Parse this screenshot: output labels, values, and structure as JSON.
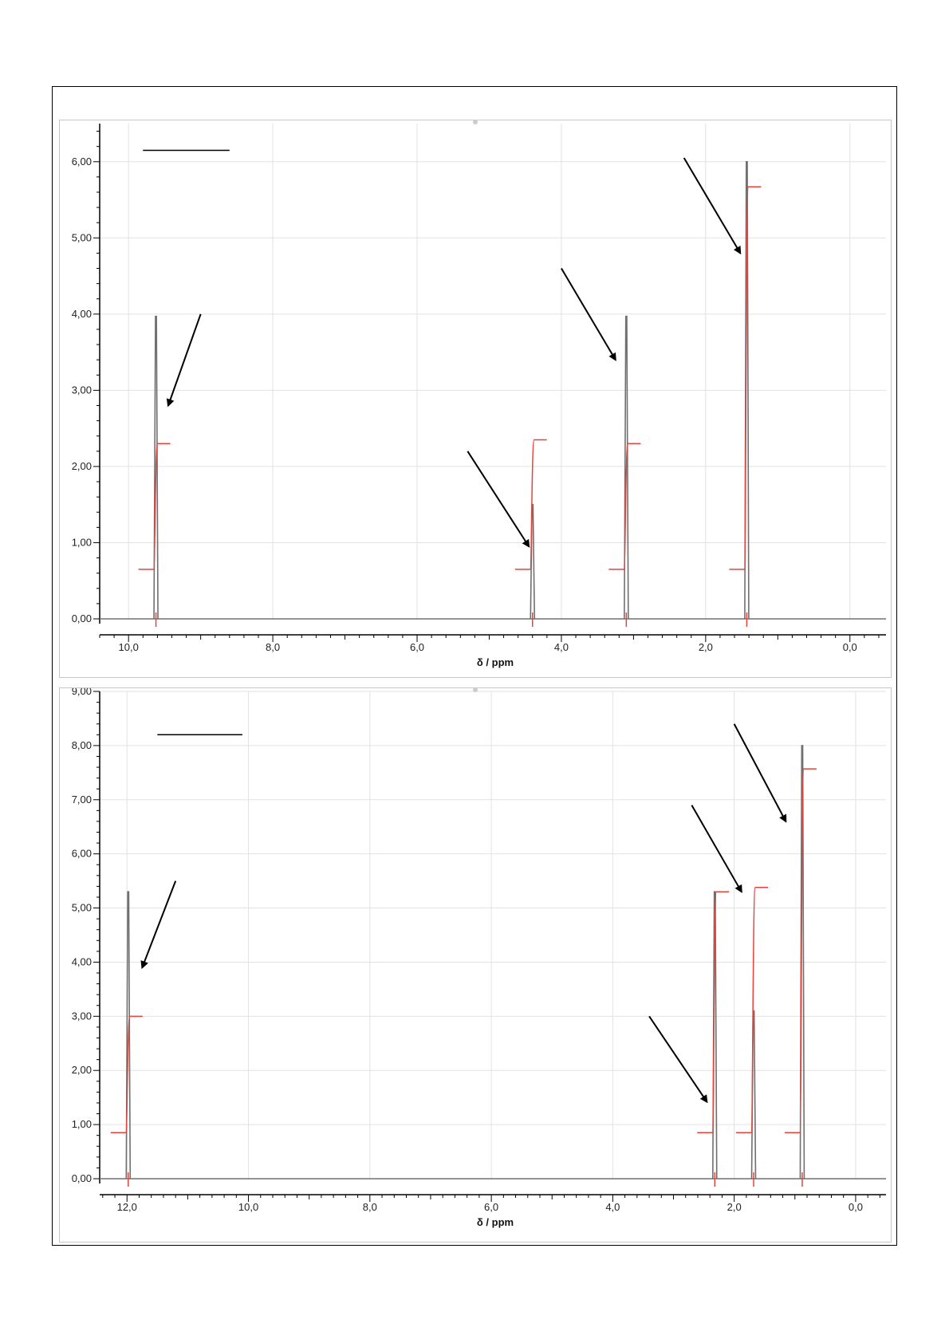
{
  "colors": {
    "spectrum": "#707070",
    "integral": "#e8423a",
    "grid": "#e2e2e2",
    "axis": "#000000",
    "arrow": "#000000"
  },
  "chart_data": [
    {
      "type": "line",
      "xlabel": "δ / ppm",
      "ylabel": "",
      "xlim": [
        10.4,
        -0.5
      ],
      "ylim": [
        0,
        6.5
      ],
      "x_reversed": true,
      "grid": true,
      "x_ticks": [
        "10,0",
        "8,0",
        "6,0",
        "4,0",
        "2,0",
        "0,0"
      ],
      "x_tick_values": [
        10,
        8,
        6,
        4,
        2,
        0
      ],
      "y_ticks": [
        "0,00",
        "1,00",
        "2,00",
        "3,00",
        "4,00",
        "5,00",
        "6,00"
      ],
      "y_tick_values": [
        0,
        1,
        2,
        3,
        4,
        5,
        6
      ],
      "peaks": [
        {
          "shift": 9.62,
          "height": 3.97,
          "integral": 2.3
        },
        {
          "shift": 4.4,
          "height": 1.5,
          "integral": 2.35
        },
        {
          "shift": 3.1,
          "height": 3.97,
          "integral": 2.3
        },
        {
          "shift": 1.43,
          "height": 6.0,
          "integral": 5.67
        }
      ],
      "integral_baseline": 0.65,
      "arrows": [
        {
          "from": [
            9.0,
            4.0
          ],
          "to": [
            9.45,
            2.8
          ]
        },
        {
          "from": [
            5.3,
            2.2
          ],
          "to": [
            4.45,
            0.95
          ]
        },
        {
          "from": [
            4.0,
            4.6
          ],
          "to": [
            3.25,
            3.4
          ]
        },
        {
          "from": [
            2.3,
            6.05
          ],
          "to": [
            1.52,
            4.8
          ]
        }
      ],
      "label_line": {
        "x": [
          9.8,
          8.6
        ],
        "y": 6.15
      }
    },
    {
      "type": "line",
      "xlabel": "δ / ppm",
      "ylabel": "",
      "xlim": [
        12.45,
        -0.5
      ],
      "ylim": [
        0,
        9.0
      ],
      "x_reversed": true,
      "grid": true,
      "x_ticks": [
        "12,0",
        "10,0",
        "8,0",
        "6,0",
        "4,0",
        "2,0",
        "0,0"
      ],
      "x_tick_values": [
        12,
        10,
        8,
        6,
        4,
        2,
        0
      ],
      "y_ticks": [
        "0,00",
        "1,00",
        "2,00",
        "3,00",
        "4,00",
        "5,00",
        "6,00",
        "7,00",
        "8,00",
        "9,00"
      ],
      "y_tick_values": [
        0,
        1,
        2,
        3,
        4,
        5,
        6,
        7,
        8,
        9
      ],
      "peaks": [
        {
          "shift": 11.98,
          "height": 5.3,
          "integral": 3.0
        },
        {
          "shift": 2.32,
          "height": 5.3,
          "integral": 5.3
        },
        {
          "shift": 1.68,
          "height": 3.1,
          "integral": 5.38
        },
        {
          "shift": 0.88,
          "height": 8.0,
          "integral": 7.57
        }
      ],
      "integral_baseline": 0.85,
      "arrows": [
        {
          "from": [
            11.2,
            5.5
          ],
          "to": [
            11.75,
            3.9
          ]
        },
        {
          "from": [
            3.4,
            3.0
          ],
          "to": [
            2.45,
            1.42
          ]
        },
        {
          "from": [
            2.7,
            6.9
          ],
          "to": [
            1.88,
            5.3
          ]
        },
        {
          "from": [
            2.0,
            8.4
          ],
          "to": [
            1.15,
            6.6
          ]
        }
      ],
      "label_line": {
        "x": [
          11.5,
          10.1
        ],
        "y": 8.2
      }
    }
  ]
}
